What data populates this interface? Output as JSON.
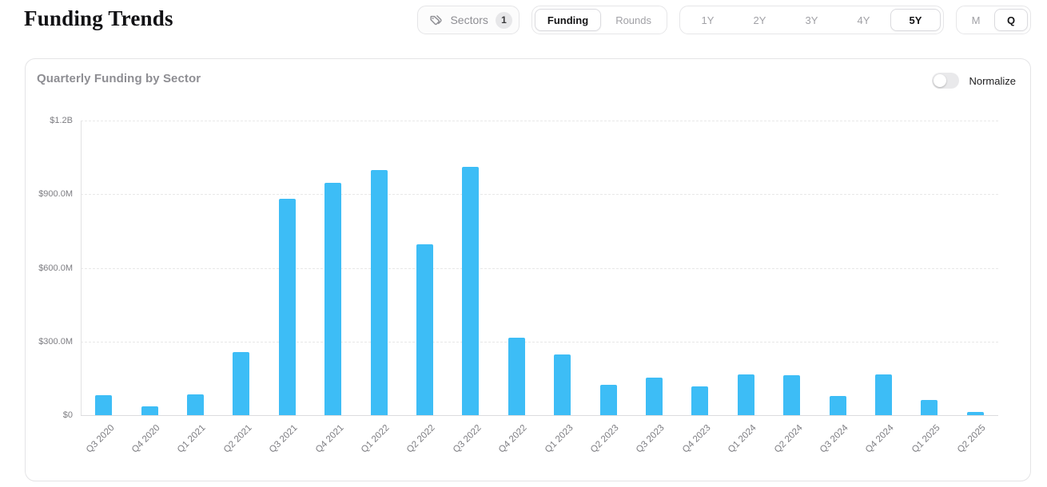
{
  "page": {
    "title": "Funding Trends"
  },
  "toolbar": {
    "sectors": {
      "label": "Sectors",
      "badge": "1",
      "icon": "tags-icon"
    },
    "metric_toggle": {
      "options": [
        "Funding",
        "Rounds"
      ],
      "selected": "Funding"
    },
    "range_toggle": {
      "options": [
        "1Y",
        "2Y",
        "3Y",
        "4Y",
        "5Y"
      ],
      "selected": "5Y"
    },
    "granularity_toggle": {
      "options": [
        "M",
        "Q"
      ],
      "selected": "Q"
    }
  },
  "card": {
    "title": "Quarterly Funding by Sector",
    "normalize_label": "Normalize",
    "normalize_on": false
  },
  "chart_data": {
    "type": "bar",
    "title": "Quarterly Funding by Sector",
    "categories": [
      "Q3 2020",
      "Q4 2020",
      "Q1 2021",
      "Q2 2021",
      "Q3 2021",
      "Q4 2021",
      "Q1 2022",
      "Q2 2022",
      "Q3 2022",
      "Q4 2022",
      "Q1 2023",
      "Q2 2023",
      "Q3 2023",
      "Q4 2023",
      "Q1 2024",
      "Q2 2024",
      "Q3 2024",
      "Q4 2024",
      "Q1 2025",
      "Q2 2025"
    ],
    "values": [
      82,
      36,
      84,
      258,
      880,
      945,
      997,
      696,
      1013,
      317,
      246,
      124,
      153,
      117,
      165,
      161,
      78,
      167,
      62,
      13
    ],
    "unit": "USD millions",
    "xlabel": "",
    "ylabel": "",
    "ylim": [
      0,
      1200
    ],
    "yticks": [
      {
        "value": 0,
        "label": "$0"
      },
      {
        "value": 300,
        "label": "$300.0M"
      },
      {
        "value": 600,
        "label": "$600.0M"
      },
      {
        "value": 900,
        "label": "$900.0M"
      },
      {
        "value": 1200,
        "label": "$1.2B"
      }
    ],
    "grid": "horizontal-dashed",
    "legend": "none",
    "bar_color": "#3dbdf6"
  }
}
